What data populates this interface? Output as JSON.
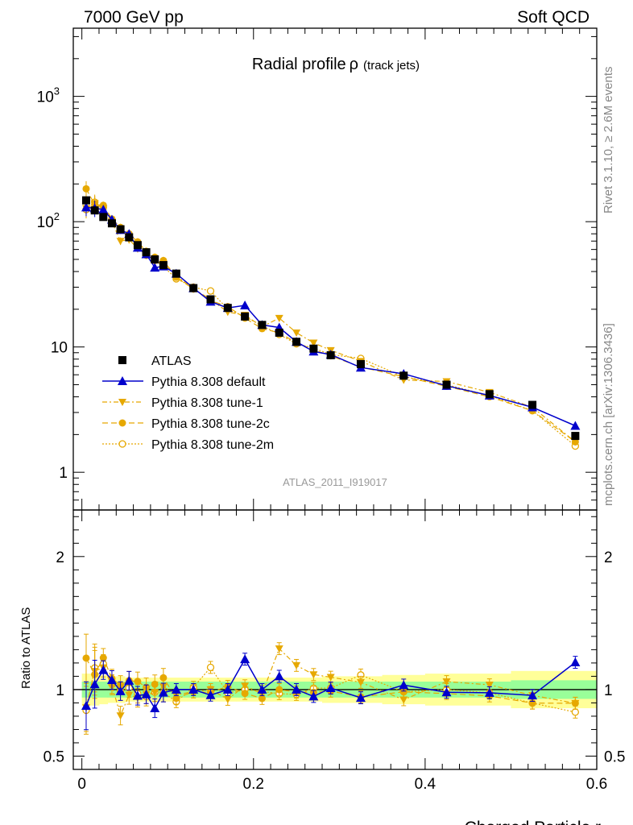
{
  "header": {
    "left": "7000 GeV pp",
    "right": "Soft QCD"
  },
  "title": {
    "main": "Radial profile",
    "symbol": "ρ",
    "sub": "(track jets)"
  },
  "side_labels": {
    "top": "Rivet 3.1.10, ≥ 2.6M events",
    "bottom": "mcplots.cern.ch [arXiv:1306.3436]"
  },
  "analysis_tag": "ATLAS_2011_I919017",
  "xlabel": "Charged Particle r",
  "ratio_ylabel": "Ratio to ATLAS",
  "colors": {
    "atlas": "#000000",
    "default": "#0000cc",
    "tune": "#e6a800",
    "green": "#99ff99",
    "yellow": "#ffff99"
  },
  "chart_data": {
    "type": "scatter",
    "x": [
      0.005,
      0.015,
      0.025,
      0.035,
      0.045,
      0.055,
      0.065,
      0.075,
      0.085,
      0.095,
      0.11,
      0.13,
      0.15,
      0.17,
      0.19,
      0.21,
      0.23,
      0.25,
      0.27,
      0.29,
      0.325,
      0.375,
      0.425,
      0.475,
      0.525,
      0.575
    ],
    "xlim": [
      -0.01,
      0.6
    ],
    "xticks": [
      0,
      0.2,
      0.4,
      0.6
    ],
    "main": {
      "yscale": "log",
      "ylim": [
        0.5,
        3500
      ],
      "yticks": [
        {
          "value": 1,
          "label": "1"
        },
        {
          "value": 10,
          "label": "10"
        },
        {
          "value": 100,
          "label": "10",
          "sup": "2"
        },
        {
          "value": 1000,
          "label": "10",
          "sup": "3"
        }
      ]
    },
    "ratio": {
      "ylim": [
        0.4,
        2.35
      ],
      "yticks": [
        0.5,
        1,
        2
      ],
      "band_green": [
        0.06,
        0.06,
        0.06,
        0.06,
        0.06,
        0.06,
        0.06,
        0.06,
        0.06,
        0.06,
        0.06,
        0.06,
        0.06,
        0.06,
        0.06,
        0.06,
        0.06,
        0.06,
        0.06,
        0.06,
        0.06,
        0.06,
        0.06,
        0.06,
        0.07,
        0.07
      ],
      "band_yellow": [
        0.12,
        0.12,
        0.11,
        0.1,
        0.1,
        0.09,
        0.09,
        0.09,
        0.09,
        0.09,
        0.09,
        0.09,
        0.09,
        0.09,
        0.09,
        0.09,
        0.09,
        0.09,
        0.09,
        0.1,
        0.1,
        0.11,
        0.12,
        0.12,
        0.14,
        0.14
      ]
    },
    "series": [
      {
        "name": "ATLAS",
        "style": "atlas",
        "values": [
          148,
          123,
          109,
          97,
          87,
          75,
          65,
          57,
          50,
          45,
          38.5,
          29.5,
          24,
          20.5,
          17.5,
          15,
          13,
          11,
          9.7,
          8.6,
          7.3,
          5.9,
          5.0,
          4.2,
          3.45,
          1.95
        ]
      },
      {
        "name": "Pythia 8.308 default",
        "style": "default",
        "values": [
          130,
          128,
          125,
          104,
          86,
          80,
          62,
          55,
          43,
          44,
          38.5,
          29.5,
          23,
          20.5,
          21.5,
          15,
          14.3,
          11,
          9.2,
          8.7,
          6.85,
          6.1,
          4.9,
          4.1,
          3.3,
          2.35
        ]
      },
      {
        "name": "Pythia 8.308 tune-1",
        "style": "tune1",
        "values": [
          128,
          140,
          127,
          100,
          70,
          72,
          61,
          55,
          49,
          46,
          37,
          29,
          24,
          19,
          18,
          14.5,
          17,
          13,
          10.8,
          9.4,
          7.7,
          5.45,
          5.3,
          4.35,
          3.3,
          1.75
        ]
      },
      {
        "name": "Pythia 8.308 tune-2c",
        "style": "tune2c",
        "values": [
          183,
          137,
          135,
          105,
          90,
          80,
          69,
          58,
          52,
          49,
          36,
          29,
          23.5,
          21,
          17,
          14,
          13,
          10.8,
          9.5,
          8.5,
          6.9,
          5.8,
          4.85,
          4.0,
          3.1,
          1.75
        ]
      },
      {
        "name": "Pythia 8.308 tune-2m",
        "style": "tune2m",
        "values": [
          125,
          143,
          130,
          101,
          86,
          76,
          63,
          54,
          49,
          44,
          35,
          30,
          28,
          20,
          17.5,
          14.8,
          12.6,
          10.6,
          9.8,
          8.7,
          8.1,
          5.8,
          5.0,
          4.1,
          3.1,
          1.62
        ]
      }
    ]
  }
}
